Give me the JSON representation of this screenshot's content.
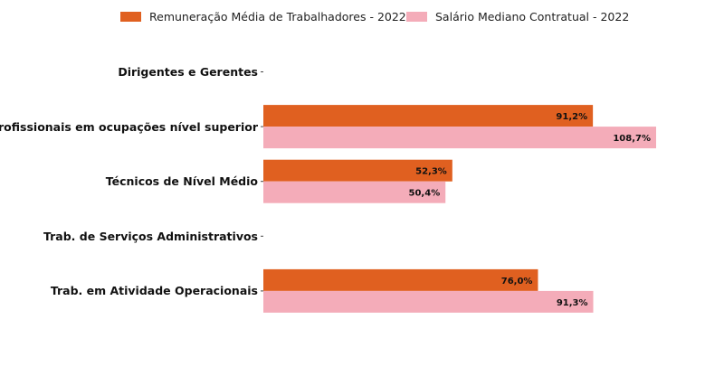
{
  "chart_data": {
    "type": "bar",
    "orientation": "horizontal",
    "categories": [
      "Dirigentes e Gerentes",
      "Profissionais em ocupações nível superior",
      "Técnicos de Nível Médio",
      "Trab. de Serviços Administrativos",
      "Trab. em Atividade Operacionais"
    ],
    "series": [
      {
        "name": "Remuneração Média de Trabalhadores - 2022",
        "color": "#e06020",
        "values": [
          null,
          91.2,
          52.3,
          null,
          76.0
        ],
        "labels": [
          "",
          "91,2%",
          "52,3%",
          "",
          "76,0%"
        ]
      },
      {
        "name": "Salário Mediano Contratual - 2022",
        "color": "#f4acb9",
        "values": [
          null,
          108.7,
          50.4,
          null,
          91.3
        ],
        "labels": [
          "",
          "108,7%",
          "50,4%",
          "",
          "91,3%"
        ]
      }
    ],
    "xlim": [
      0,
      125
    ],
    "grid": false,
    "legend_position": "top-center"
  }
}
